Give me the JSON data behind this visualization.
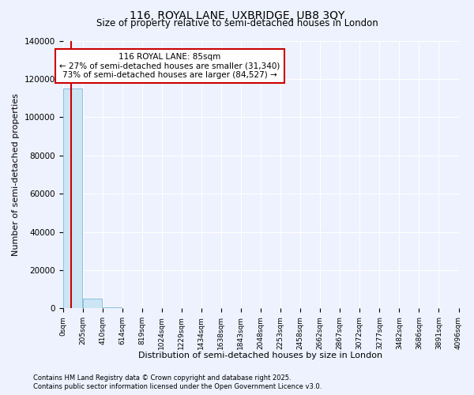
{
  "title": "116, ROYAL LANE, UXBRIDGE, UB8 3QY",
  "subtitle": "Size of property relative to semi-detached houses in London",
  "xlabel": "Distribution of semi-detached houses by size in London",
  "ylabel": "Number of semi-detached properties",
  "property_size": 85,
  "annotation_text": "116 ROYAL LANE: 85sqm\n← 27% of semi-detached houses are smaller (31,340)\n73% of semi-detached houses are larger (84,527) →",
  "bar_color": "#cce5f5",
  "bar_edgecolor": "#8bbfdc",
  "vline_color": "#cc0000",
  "annotation_box_color": "white",
  "annotation_box_edgecolor": "#cc0000",
  "background_color": "#eef2ff",
  "bin_edges": [
    0,
    205,
    410,
    614,
    819,
    1024,
    1229,
    1434,
    1638,
    1843,
    2048,
    2253,
    2458,
    2662,
    2867,
    3072,
    3277,
    3482,
    3686,
    3891,
    4096
  ],
  "bin_labels": [
    "0sqm",
    "205sqm",
    "410sqm",
    "614sqm",
    "819sqm",
    "1024sqm",
    "1229sqm",
    "1434sqm",
    "1638sqm",
    "1843sqm",
    "2048sqm",
    "2253sqm",
    "2458sqm",
    "2662sqm",
    "2867sqm",
    "3072sqm",
    "3277sqm",
    "3482sqm",
    "3686sqm",
    "3891sqm",
    "4096sqm"
  ],
  "bar_heights": [
    115000,
    5000,
    700,
    200,
    100,
    60,
    40,
    25,
    18,
    12,
    9,
    7,
    6,
    5,
    4,
    3,
    3,
    2,
    2,
    1
  ],
  "ylim": [
    0,
    140000
  ],
  "yticks": [
    0,
    20000,
    40000,
    60000,
    80000,
    100000,
    120000,
    140000
  ],
  "footer_line1": "Contains HM Land Registry data © Crown copyright and database right 2025.",
  "footer_line2": "Contains public sector information licensed under the Open Government Licence v3.0."
}
